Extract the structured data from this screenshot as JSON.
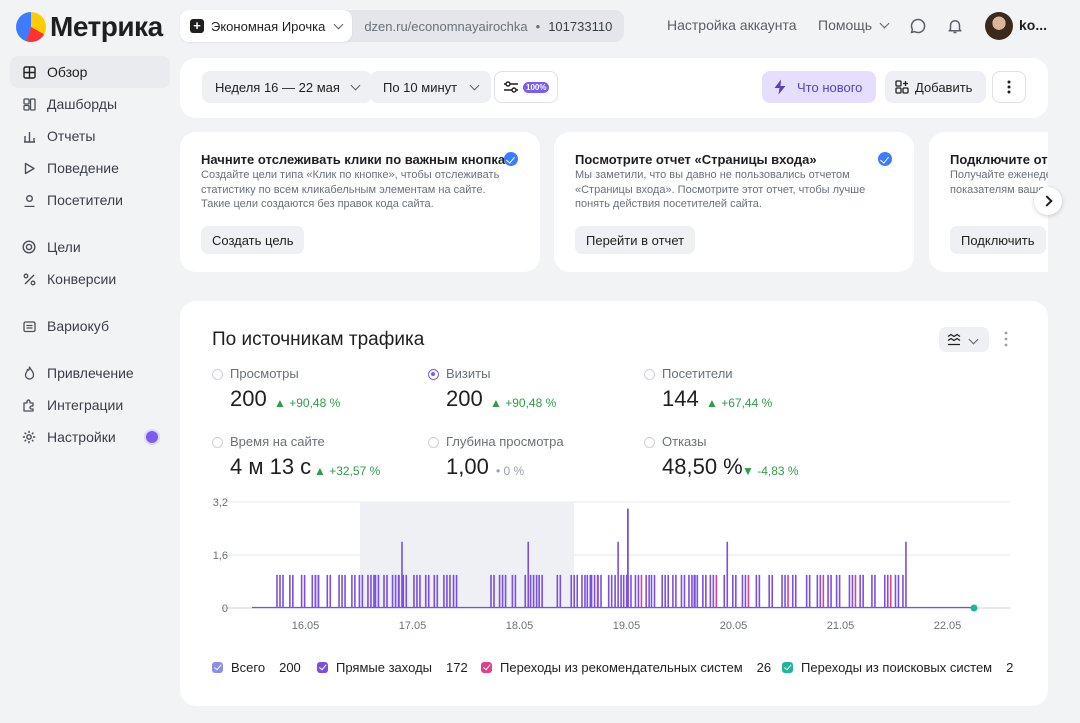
{
  "app": {
    "name": "Метрика"
  },
  "counter": {
    "name": "Экономная Ирочка",
    "url": "dzen.ru/economnayairochka",
    "separator": "•",
    "id": "101733110"
  },
  "topnav": {
    "account_settings": "Настройка аккаунта",
    "help": "Помощь",
    "username": "ko..."
  },
  "sidebar": {
    "items": [
      {
        "label": "Обзор",
        "icon": "grid-icon",
        "active": true
      },
      {
        "label": "Дашборды",
        "icon": "dashboard-icon"
      },
      {
        "label": "Отчеты",
        "icon": "bar-chart-icon"
      },
      {
        "label": "Поведение",
        "icon": "play-icon"
      },
      {
        "label": "Посетители",
        "icon": "user-icon"
      },
      {
        "label": "Цели",
        "icon": "target-icon"
      },
      {
        "label": "Конверсии",
        "icon": "percent-icon"
      },
      {
        "label": "Вариокуб",
        "icon": "cube-icon"
      },
      {
        "label": "Привлечение",
        "icon": "flame-icon"
      },
      {
        "label": "Интеграции",
        "icon": "puzzle-icon"
      },
      {
        "label": "Настройки",
        "icon": "gear-icon",
        "badge": true
      }
    ]
  },
  "filters": {
    "period": "Неделя 16 — 22 мая",
    "granularity": "По 10 минут",
    "sampling_badge": "100%",
    "whats_new": "Что нового",
    "add": "Добавить"
  },
  "cards": [
    {
      "title": "Начните отслеживать клики по важным кнопкам",
      "lines": [
        "Создайте цели типа «Клик по кнопке», чтобы отслеживать",
        "статистику по всем кликабельным элементам на сайте.",
        "Такие цели создаются без правок кода сайта."
      ],
      "button": "Создать цель"
    },
    {
      "title": "Посмотрите отчет «Страницы входа»",
      "lines": [
        "Мы заметили, что вы давно не пользовались отчетом",
        "«Страницы входа». Посмотрите этот отчет, чтобы лучше",
        "понять действия посетителей сайта."
      ],
      "button": "Перейти в отчет"
    },
    {
      "title": "Подключите отчеты",
      "lines": [
        "Получайте еженеде",
        "показателям ваше"
      ],
      "button": "Подключить"
    }
  ],
  "panel": {
    "title": "По источникам трафика"
  },
  "metrics": [
    {
      "label": "Просмотры",
      "value": "200",
      "delta": "▲ +90,48 %",
      "selected": false,
      "trend": "up"
    },
    {
      "label": "Визиты",
      "value": "200",
      "delta": "▲ +90,48 %",
      "selected": true,
      "trend": "up"
    },
    {
      "label": "Посетители",
      "value": "144",
      "delta": "▲ +67,44 %",
      "selected": false,
      "trend": "up"
    },
    {
      "label": "Время на сайте",
      "value": "4 м 13 с",
      "delta": "▲ +32,57 %",
      "selected": false,
      "trend": "up"
    },
    {
      "label": "Глубина просмотра",
      "value": "1,00",
      "delta": "• 0 %",
      "selected": false,
      "trend": "neutral"
    },
    {
      "label": "Отказы",
      "value": "48,50 %",
      "delta": "▼ -4,83 %",
      "selected": false,
      "trend": "down"
    }
  ],
  "chart_data": {
    "type": "bar",
    "title": "",
    "y_ticks": [
      "3,2",
      "1,6",
      "0"
    ],
    "ylim": [
      0,
      3.2
    ],
    "x_ticks": [
      "16.05",
      "17.05",
      "18.05",
      "19.05",
      "20.05",
      "21.05",
      "22.05"
    ],
    "highlight_range": [
      "16.05 12:00",
      "18.05 12:00"
    ],
    "series": [
      {
        "name": "Прямые заходы",
        "color": "#7b4fe0"
      },
      {
        "name": "Переходы из рекомендательных систем",
        "color": "#e0408a"
      },
      {
        "name": "Переходы из поисковых систем",
        "color": "#20b59a"
      }
    ],
    "spikes": [
      [
        0.1,
        1,
        0
      ],
      [
        0.22,
        1,
        0
      ],
      [
        0.33,
        1,
        1
      ],
      [
        0.43,
        1,
        0
      ],
      [
        0.46,
        1,
        1
      ],
      [
        0.57,
        1,
        0
      ],
      [
        0.68,
        1,
        0
      ],
      [
        0.8,
        1,
        0
      ],
      [
        0.87,
        1,
        1
      ],
      [
        0.95,
        1,
        0
      ],
      [
        1.02,
        1,
        0
      ],
      [
        1.1,
        1,
        1
      ],
      [
        1.18,
        1,
        0
      ],
      [
        1.24,
        2,
        0
      ],
      [
        1.28,
        1,
        0
      ],
      [
        1.38,
        1,
        0
      ],
      [
        1.49,
        1,
        1
      ],
      [
        1.57,
        1,
        0
      ],
      [
        1.66,
        1,
        0
      ],
      [
        1.75,
        1,
        0
      ],
      [
        2.1,
        1,
        0
      ],
      [
        2.18,
        1,
        0
      ],
      [
        2.3,
        1,
        1
      ],
      [
        2.42,
        2,
        0
      ],
      [
        2.47,
        1,
        0
      ],
      [
        2.55,
        1,
        1
      ],
      [
        2.72,
        1,
        0
      ],
      [
        2.85,
        1,
        0
      ],
      [
        2.95,
        1,
        0
      ],
      [
        3.0,
        1,
        0
      ],
      [
        3.04,
        1,
        1
      ],
      [
        3.1,
        1,
        0
      ],
      [
        3.2,
        1,
        0
      ],
      [
        3.26,
        2,
        0
      ],
      [
        3.34,
        1,
        2
      ],
      [
        3.38,
        1,
        0
      ],
      [
        3.45,
        1,
        1
      ],
      [
        3.55,
        1,
        0
      ],
      [
        3.6,
        1,
        0
      ],
      [
        3.7,
        1,
        0
      ],
      [
        3.8,
        1,
        0
      ],
      [
        3.88,
        1,
        1
      ],
      [
        3.95,
        1,
        0
      ],
      [
        4.0,
        1,
        0
      ],
      [
        4.08,
        1,
        0
      ],
      [
        4.15,
        1,
        1
      ],
      [
        4.28,
        2,
        0
      ],
      [
        4.36,
        1,
        0
      ],
      [
        4.45,
        1,
        1
      ],
      [
        4.58,
        1,
        0
      ],
      [
        4.7,
        1,
        0
      ],
      [
        4.82,
        1,
        1
      ],
      [
        4.92,
        1,
        0
      ],
      [
        5.05,
        1,
        0
      ],
      [
        5.15,
        1,
        1
      ],
      [
        5.25,
        1,
        0
      ],
      [
        5.33,
        1,
        0
      ],
      [
        5.45,
        1,
        1
      ],
      [
        5.55,
        1,
        0
      ],
      [
        5.66,
        1,
        0
      ],
      [
        5.78,
        1,
        1
      ],
      [
        5.88,
        1,
        0
      ],
      [
        5.95,
        2,
        0
      ]
    ],
    "series_totals": [
      172,
      26,
      2
    ],
    "total_label": "Всего",
    "total": 200
  },
  "legend": [
    {
      "label": "Всего",
      "count": "200",
      "color": "#8a8fe8"
    },
    {
      "label": "Прямые заходы",
      "count": "172",
      "color": "#7b4fe0"
    },
    {
      "label": "Переходы из рекомендательных систем",
      "count": "26",
      "color": "#e0408a"
    },
    {
      "label": "Переходы из поисковых систем",
      "count": "2",
      "color": "#20b59a"
    }
  ]
}
